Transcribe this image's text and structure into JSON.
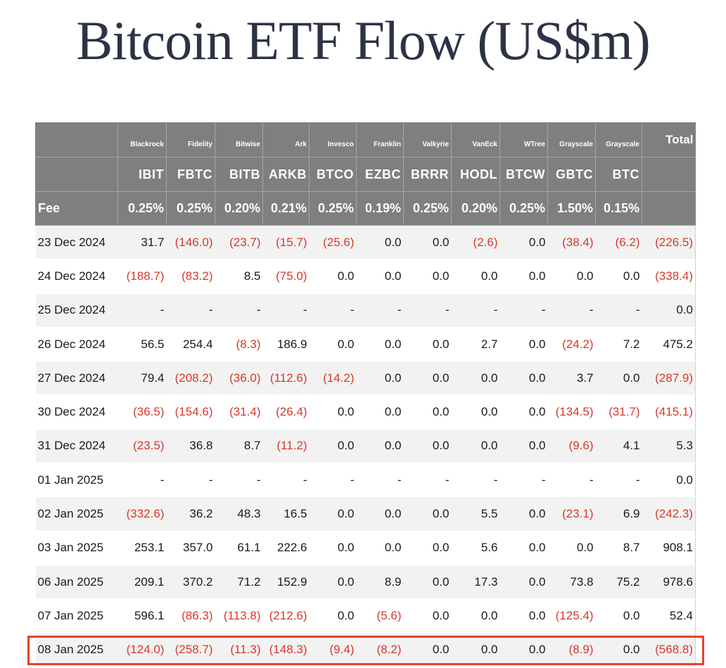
{
  "title": "Bitcoin ETF Flow (US$m)",
  "table": {
    "issuers": [
      "Blackrock",
      "Fidelity",
      "Bitwise",
      "Ark",
      "Invesco",
      "Franklin",
      "Valkyrie",
      "VanEck",
      "WTree",
      "Grayscale",
      "Grayscale"
    ],
    "total_label": "Total",
    "tickers": [
      "IBIT",
      "FBTC",
      "BITB",
      "ARKB",
      "BTCO",
      "EZBC",
      "BRRR",
      "HODL",
      "BTCW",
      "GBTC",
      "BTC"
    ],
    "fee_label": "Fee",
    "fees": [
      "0.25%",
      "0.25%",
      "0.20%",
      "0.21%",
      "0.25%",
      "0.19%",
      "0.25%",
      "0.20%",
      "0.25%",
      "1.50%",
      "0.15%"
    ],
    "rows": [
      {
        "date": "23 Dec 2024",
        "values": [
          "31.7",
          "(146.0)",
          "(23.7)",
          "(15.7)",
          "(25.6)",
          "0.0",
          "0.0",
          "(2.6)",
          "0.0",
          "(38.4)",
          "(6.2)",
          "(226.5)"
        ]
      },
      {
        "date": "24 Dec 2024",
        "values": [
          "(188.7)",
          "(83.2)",
          "8.5",
          "(75.0)",
          "0.0",
          "0.0",
          "0.0",
          "0.0",
          "0.0",
          "0.0",
          "0.0",
          "(338.4)"
        ]
      },
      {
        "date": "25 Dec 2024",
        "values": [
          "-",
          "-",
          "-",
          "-",
          "-",
          "-",
          "-",
          "-",
          "-",
          "-",
          "-",
          "0.0"
        ]
      },
      {
        "date": "26 Dec 2024",
        "values": [
          "56.5",
          "254.4",
          "(8.3)",
          "186.9",
          "0.0",
          "0.0",
          "0.0",
          "2.7",
          "0.0",
          "(24.2)",
          "7.2",
          "475.2"
        ]
      },
      {
        "date": "27 Dec 2024",
        "values": [
          "79.4",
          "(208.2)",
          "(36.0)",
          "(112.6)",
          "(14.2)",
          "0.0",
          "0.0",
          "0.0",
          "0.0",
          "3.7",
          "0.0",
          "(287.9)"
        ]
      },
      {
        "date": "30 Dec 2024",
        "values": [
          "(36.5)",
          "(154.6)",
          "(31.4)",
          "(26.4)",
          "0.0",
          "0.0",
          "0.0",
          "0.0",
          "0.0",
          "(134.5)",
          "(31.7)",
          "(415.1)"
        ]
      },
      {
        "date": "31 Dec 2024",
        "values": [
          "(23.5)",
          "36.8",
          "8.7",
          "(11.2)",
          "0.0",
          "0.0",
          "0.0",
          "0.0",
          "0.0",
          "(9.6)",
          "4.1",
          "5.3"
        ]
      },
      {
        "date": "01 Jan 2025",
        "values": [
          "-",
          "-",
          "-",
          "-",
          "-",
          "-",
          "-",
          "-",
          "-",
          "-",
          "-",
          "0.0"
        ]
      },
      {
        "date": "02 Jan 2025",
        "values": [
          "(332.6)",
          "36.2",
          "48.3",
          "16.5",
          "0.0",
          "0.0",
          "0.0",
          "5.5",
          "0.0",
          "(23.1)",
          "6.9",
          "(242.3)"
        ]
      },
      {
        "date": "03 Jan 2025",
        "values": [
          "253.1",
          "357.0",
          "61.1",
          "222.6",
          "0.0",
          "0.0",
          "0.0",
          "5.6",
          "0.0",
          "0.0",
          "8.7",
          "908.1"
        ]
      },
      {
        "date": "06 Jan 2025",
        "values": [
          "209.1",
          "370.2",
          "71.2",
          "152.9",
          "0.0",
          "8.9",
          "0.0",
          "17.3",
          "0.0",
          "73.8",
          "75.2",
          "978.6"
        ]
      },
      {
        "date": "07 Jan 2025",
        "values": [
          "596.1",
          "(86.3)",
          "(113.8)",
          "(212.6)",
          "0.0",
          "(5.6)",
          "0.0",
          "0.0",
          "0.0",
          "(125.4)",
          "0.0",
          "52.4"
        ]
      },
      {
        "date": "08 Jan 2025",
        "values": [
          "(124.0)",
          "(258.7)",
          "(11.3)",
          "(148.3)",
          "(9.4)",
          "(8.2)",
          "0.0",
          "0.0",
          "0.0",
          "(8.9)",
          "0.0",
          "(568.8)"
        ]
      }
    ],
    "highlighted_row_date": "08 Jan 2025",
    "negative_color": "#d9372b",
    "highlight_color": "#e5432a",
    "header_bg": "#7f7f7f"
  }
}
